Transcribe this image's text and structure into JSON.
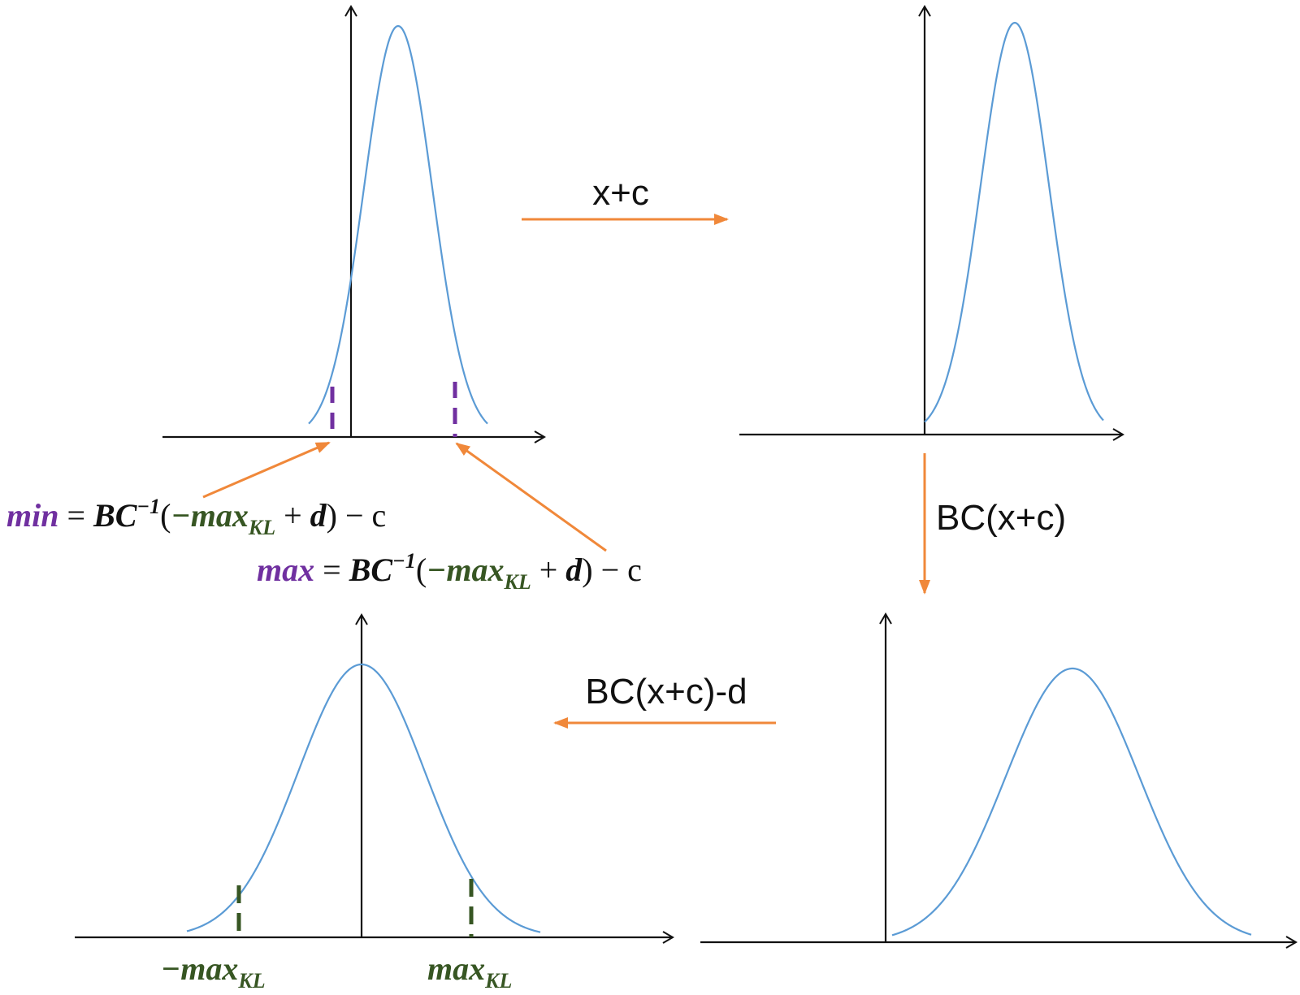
{
  "colors": {
    "curve": "#5b9bd5",
    "axis": "#111111",
    "transform_arrow": "#f0883a",
    "min_max_color": "#7030a0",
    "max_kl_color": "#375623",
    "text": "#111111"
  },
  "arrows": {
    "top": "x+c",
    "right": "BC(x+c)",
    "bottom": "BC(x+c)-d"
  },
  "formula_min": {
    "lhs": "min",
    "eq": " = ",
    "bc": "BC",
    "inv": "−1",
    "open": "(",
    "neg_max": "−max",
    "kl": "KL",
    "plus": " + ",
    "d": "d",
    "close": ")",
    "minus_c": " − c"
  },
  "formula_max": {
    "lhs": "max",
    "eq": " = ",
    "bc": "BC",
    "inv": "−1",
    "open": "(",
    "neg_max": "−max",
    "kl": "KL",
    "plus": " + ",
    "d": "d",
    "close": ")",
    "minus_c": " − c"
  },
  "bottom_labels": {
    "neg_max": "−max",
    "neg_max_sub": "KL",
    "pos_max": "max",
    "pos_max_sub": "KL"
  }
}
